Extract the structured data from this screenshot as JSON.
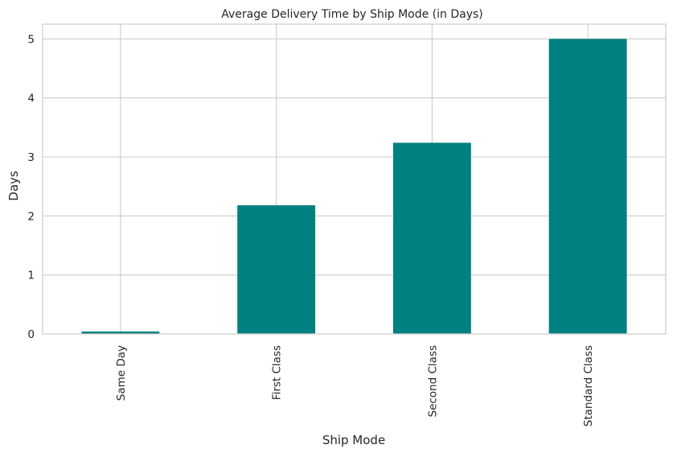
{
  "chart_data": {
    "type": "bar",
    "title": "Average Delivery Time by Ship Mode (in Days)",
    "xlabel": "Ship Mode",
    "ylabel": "Days",
    "categories": [
      "Same Day",
      "First Class",
      "Second Class",
      "Standard Class"
    ],
    "values": [
      0.04,
      2.18,
      3.24,
      5.0
    ],
    "ylim": [
      0,
      5.25
    ],
    "yticks": [
      "0",
      "1",
      "2",
      "3",
      "4",
      "5"
    ],
    "grid": true,
    "bar_color": "#008080",
    "grid_color": "#cccccc"
  }
}
